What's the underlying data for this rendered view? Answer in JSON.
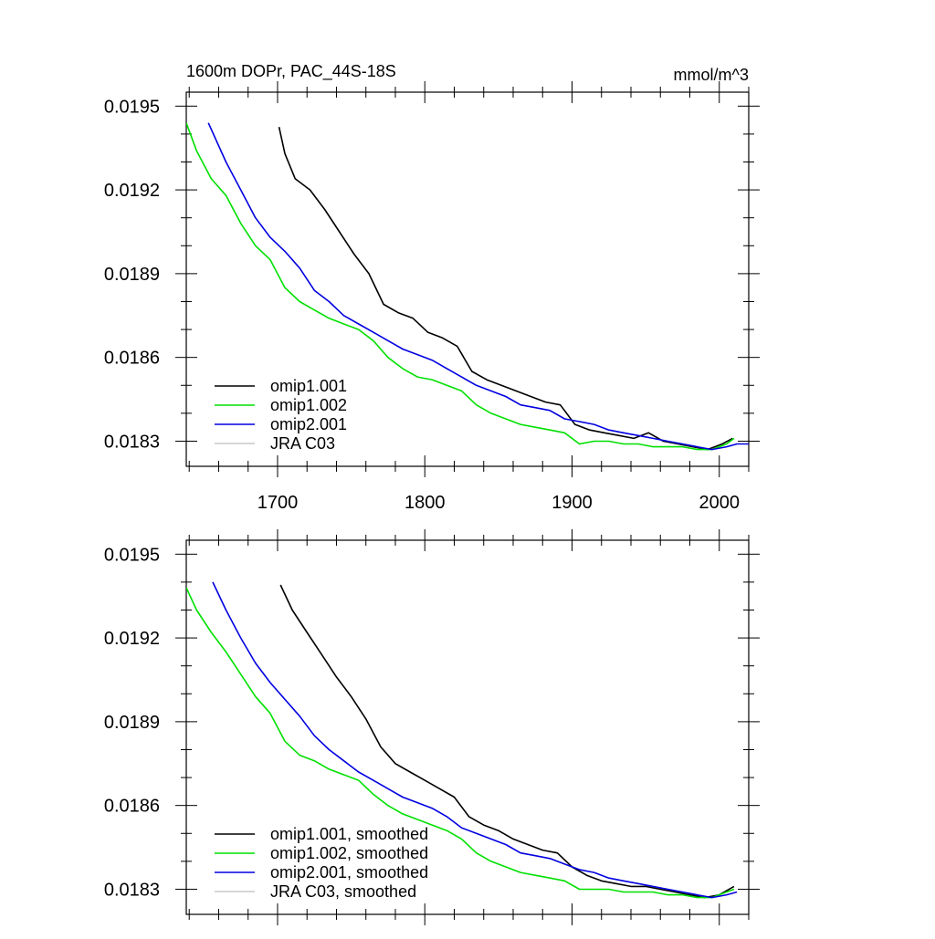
{
  "header": {
    "title": "1600m DOPr, PAC_44S-18S",
    "units": "mmol/m^3"
  },
  "colors": {
    "omip1_001": "#000000",
    "omip1_002": "#00e000",
    "omip2_001": "#0000e0",
    "jra_c03": "#c8c8c8"
  },
  "chart_data": [
    {
      "type": "line",
      "panel": "top",
      "xlim": [
        1638,
        2020
      ],
      "ylim": [
        0.01821,
        0.01955
      ],
      "xticks": [
        1700,
        1800,
        1900,
        2000
      ],
      "xtick_labels": [
        "1700",
        "1800",
        "1900",
        "2000"
      ],
      "yticks": [
        0.0183,
        0.0186,
        0.0189,
        0.0192,
        0.0195
      ],
      "ytick_labels": [
        "0.0183",
        "0.0186",
        "0.0189",
        "0.0192",
        "0.0195"
      ],
      "legend_position": "bottom-left",
      "series": [
        {
          "name": "omip1.001",
          "color_key": "omip1_001",
          "x": [
            1701,
            1705,
            1712,
            1722,
            1732,
            1742,
            1752,
            1762,
            1772,
            1782,
            1792,
            1802,
            1812,
            1822,
            1832,
            1842,
            1852,
            1862,
            1872,
            1882,
            1892,
            1902,
            1912,
            1922,
            1932,
            1942,
            1952,
            1962,
            1972,
            1982,
            1992,
            2002,
            2009
          ],
          "y": [
            0.019425,
            0.01933,
            0.01924,
            0.0192,
            0.01913,
            0.01905,
            0.01897,
            0.0189,
            0.01879,
            0.01876,
            0.01874,
            0.01869,
            0.01867,
            0.01864,
            0.01855,
            0.01852,
            0.0185,
            0.01848,
            0.01846,
            0.01844,
            0.01843,
            0.01836,
            0.01834,
            0.01833,
            0.01832,
            0.01831,
            0.01833,
            0.0183,
            0.01829,
            0.01828,
            0.01827,
            0.01829,
            0.01831
          ]
        },
        {
          "name": "omip1.002",
          "color_key": "omip1_002",
          "x": [
            1638,
            1645,
            1655,
            1665,
            1675,
            1685,
            1695,
            1705,
            1715,
            1725,
            1735,
            1745,
            1755,
            1765,
            1775,
            1785,
            1795,
            1805,
            1815,
            1825,
            1835,
            1845,
            1855,
            1865,
            1875,
            1885,
            1895,
            1905,
            1915,
            1925,
            1935,
            1945,
            1955,
            1965,
            1975,
            1985,
            1995,
            2005,
            2010
          ],
          "y": [
            0.01944,
            0.01934,
            0.01924,
            0.01918,
            0.01908,
            0.019,
            0.01895,
            0.01885,
            0.0188,
            0.01877,
            0.01874,
            0.01872,
            0.0187,
            0.01866,
            0.0186,
            0.01856,
            0.01853,
            0.01852,
            0.0185,
            0.01848,
            0.01843,
            0.0184,
            0.01838,
            0.01836,
            0.01835,
            0.01834,
            0.01833,
            0.01829,
            0.0183,
            0.0183,
            0.01829,
            0.01829,
            0.01828,
            0.01828,
            0.01828,
            0.01827,
            0.01827,
            0.01829,
            0.01831
          ]
        },
        {
          "name": "omip2.001",
          "color_key": "omip2_001",
          "x": [
            1653,
            1665,
            1675,
            1685,
            1695,
            1705,
            1715,
            1725,
            1735,
            1745,
            1755,
            1765,
            1775,
            1785,
            1795,
            1805,
            1815,
            1825,
            1835,
            1845,
            1855,
            1865,
            1875,
            1885,
            1895,
            1905,
            1915,
            1925,
            1935,
            1945,
            1955,
            1965,
            1975,
            1985,
            1995,
            2005,
            2012,
            2020
          ],
          "y": [
            0.01944,
            0.0193,
            0.0192,
            0.0191,
            0.01903,
            0.01898,
            0.01892,
            0.01884,
            0.0188,
            0.01875,
            0.01872,
            0.01869,
            0.01866,
            0.01863,
            0.01861,
            0.01859,
            0.01856,
            0.01853,
            0.0185,
            0.01848,
            0.01846,
            0.01843,
            0.01842,
            0.01841,
            0.01838,
            0.01837,
            0.01836,
            0.01834,
            0.01833,
            0.01832,
            0.01831,
            0.0183,
            0.01829,
            0.01828,
            0.01827,
            0.01828,
            0.01829,
            0.01829
          ]
        },
        {
          "name": "JRA C03",
          "color_key": "jra_c03",
          "x": [],
          "y": []
        }
      ]
    },
    {
      "type": "line",
      "panel": "bottom",
      "xlim": [
        1638,
        2020
      ],
      "ylim": [
        0.01821,
        0.01955
      ],
      "xticks": [
        1700,
        1800,
        1900,
        2000
      ],
      "xtick_labels": [],
      "yticks": [
        0.0183,
        0.0186,
        0.0189,
        0.0192,
        0.0195
      ],
      "ytick_labels": [
        "0.0183",
        "0.0186",
        "0.0189",
        "0.0192",
        "0.0195"
      ],
      "legend_position": "bottom-left",
      "series": [
        {
          "name": "omip1.001, smoothed",
          "color_key": "omip1_001",
          "x": [
            1702,
            1710,
            1720,
            1730,
            1740,
            1750,
            1760,
            1770,
            1780,
            1790,
            1800,
            1810,
            1820,
            1830,
            1840,
            1850,
            1860,
            1870,
            1880,
            1890,
            1900,
            1910,
            1920,
            1930,
            1940,
            1950,
            1960,
            1970,
            1980,
            1990,
            2000,
            2010
          ],
          "y": [
            0.01939,
            0.0193,
            0.01922,
            0.01914,
            0.01906,
            0.01899,
            0.01891,
            0.01881,
            0.01875,
            0.01872,
            0.01869,
            0.01866,
            0.01863,
            0.01856,
            0.01853,
            0.01851,
            0.01848,
            0.01846,
            0.01844,
            0.01843,
            0.01838,
            0.01835,
            0.01833,
            0.01832,
            0.01831,
            0.01831,
            0.0183,
            0.01829,
            0.01828,
            0.01827,
            0.01828,
            0.01831
          ]
        },
        {
          "name": "omip1.002, smoothed",
          "color_key": "omip1_002",
          "x": [
            1638,
            1645,
            1655,
            1665,
            1675,
            1685,
            1695,
            1705,
            1715,
            1725,
            1735,
            1745,
            1755,
            1765,
            1775,
            1785,
            1795,
            1805,
            1815,
            1825,
            1835,
            1845,
            1855,
            1865,
            1875,
            1885,
            1895,
            1905,
            1915,
            1925,
            1935,
            1945,
            1955,
            1965,
            1975,
            1985,
            1995,
            2005,
            2010
          ],
          "y": [
            0.01938,
            0.0193,
            0.01922,
            0.01915,
            0.01907,
            0.01899,
            0.01893,
            0.01883,
            0.01878,
            0.01876,
            0.01873,
            0.01871,
            0.01869,
            0.01864,
            0.0186,
            0.01857,
            0.01855,
            0.01853,
            0.01851,
            0.01848,
            0.01843,
            0.0184,
            0.01838,
            0.01836,
            0.01835,
            0.01834,
            0.01833,
            0.0183,
            0.0183,
            0.0183,
            0.01829,
            0.01829,
            0.01829,
            0.01828,
            0.01828,
            0.01827,
            0.01827,
            0.01829,
            0.0183
          ]
        },
        {
          "name": "omip2.001, smoothed",
          "color_key": "omip2_001",
          "x": [
            1656,
            1665,
            1675,
            1685,
            1695,
            1705,
            1715,
            1725,
            1735,
            1745,
            1755,
            1765,
            1775,
            1785,
            1795,
            1805,
            1815,
            1825,
            1835,
            1845,
            1855,
            1865,
            1875,
            1885,
            1895,
            1905,
            1915,
            1925,
            1935,
            1945,
            1955,
            1965,
            1975,
            1985,
            1995,
            2005,
            2012
          ],
          "y": [
            0.0194,
            0.0193,
            0.0192,
            0.01911,
            0.01904,
            0.01898,
            0.01892,
            0.01885,
            0.0188,
            0.01876,
            0.01872,
            0.01869,
            0.01866,
            0.01863,
            0.01861,
            0.01859,
            0.01856,
            0.01852,
            0.0185,
            0.01848,
            0.01846,
            0.01843,
            0.01842,
            0.01841,
            0.01839,
            0.01837,
            0.01836,
            0.01834,
            0.01833,
            0.01832,
            0.01831,
            0.0183,
            0.01829,
            0.01828,
            0.01827,
            0.01828,
            0.01829
          ]
        },
        {
          "name": "JRA C03, smoothed",
          "color_key": "jra_c03",
          "x": [],
          "y": []
        }
      ]
    }
  ]
}
